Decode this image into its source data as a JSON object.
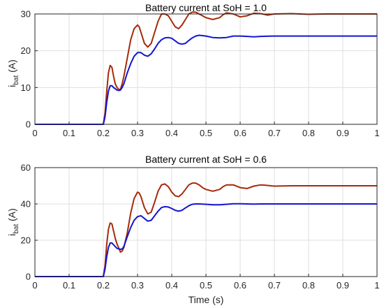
{
  "chart_data": [
    {
      "type": "line",
      "title": "Battery current at SoH = 1.0",
      "ylabel_main": "i",
      "ylabel_sub": "bat",
      "ylabel_unit": " (A)",
      "xlabel": "",
      "xlim": [
        0,
        1
      ],
      "ylim": [
        0,
        30
      ],
      "xticks": [
        "0",
        "0.1",
        "0.2",
        "0.3",
        "0.4",
        "0.5",
        "0.6",
        "0.7",
        "0.8",
        "0.9",
        "1"
      ],
      "yticks": [
        "0",
        "10",
        "20",
        "30"
      ],
      "grid": true,
      "series": [
        {
          "color": "#a52a0a",
          "x": [
            0,
            0.2,
            0.205,
            0.21,
            0.215,
            0.22,
            0.225,
            0.23,
            0.235,
            0.24,
            0.245,
            0.25,
            0.255,
            0.26,
            0.27,
            0.28,
            0.29,
            0.3,
            0.305,
            0.31,
            0.32,
            0.33,
            0.34,
            0.35,
            0.36,
            0.37,
            0.38,
            0.39,
            0.4,
            0.41,
            0.42,
            0.43,
            0.44,
            0.45,
            0.46,
            0.47,
            0.48,
            0.49,
            0.5,
            0.52,
            0.54,
            0.55,
            0.56,
            0.58,
            0.6,
            0.62,
            0.64,
            0.66,
            0.68,
            0.7,
            0.75,
            0.8,
            0.85,
            0.9,
            0.95,
            1.0
          ],
          "y": [
            0,
            0,
            3,
            9,
            14,
            16,
            15.5,
            13,
            11,
            10,
            9.5,
            9.5,
            11,
            13,
            18,
            23,
            26,
            27,
            26.5,
            25,
            22,
            21,
            22,
            25,
            28,
            30,
            30,
            29.5,
            28,
            26.5,
            26,
            27,
            28.5,
            30,
            30.5,
            30.5,
            30,
            29.5,
            29,
            28.5,
            29,
            29.8,
            30.3,
            30,
            29.2,
            29.5,
            30.2,
            30.1,
            29.7,
            30,
            30.1,
            29.9,
            30,
            30,
            30,
            30
          ]
        },
        {
          "color": "#1414d2",
          "x": [
            0,
            0.2,
            0.205,
            0.21,
            0.215,
            0.22,
            0.225,
            0.23,
            0.24,
            0.245,
            0.25,
            0.255,
            0.26,
            0.27,
            0.28,
            0.29,
            0.3,
            0.31,
            0.32,
            0.33,
            0.34,
            0.35,
            0.36,
            0.37,
            0.38,
            0.39,
            0.4,
            0.42,
            0.43,
            0.44,
            0.45,
            0.46,
            0.47,
            0.48,
            0.5,
            0.52,
            0.54,
            0.56,
            0.58,
            0.6,
            0.62,
            0.64,
            0.66,
            0.7,
            0.75,
            0.8,
            0.85,
            0.9,
            0.95,
            1.0
          ],
          "y": [
            0,
            0,
            2,
            6,
            9,
            10.5,
            10.5,
            10,
            9.3,
            9.2,
            9.3,
            10,
            11,
            14,
            16.5,
            18.5,
            19.5,
            19.5,
            18.8,
            18.5,
            19.2,
            20.5,
            22,
            23,
            23.5,
            23.6,
            23.4,
            22,
            21.8,
            22,
            22.8,
            23.5,
            24,
            24.2,
            24,
            23.6,
            23.5,
            23.6,
            24,
            24,
            23.9,
            23.8,
            23.9,
            24,
            24,
            24,
            24,
            24,
            24,
            24
          ]
        }
      ]
    },
    {
      "type": "line",
      "title": "Battery current at SoH = 0.6",
      "ylabel_main": "i",
      "ylabel_sub": "bat",
      "ylabel_unit": " (A)",
      "xlabel": "Time (s)",
      "xlim": [
        0,
        1
      ],
      "ylim": [
        0,
        60
      ],
      "xticks": [
        "0",
        "0.1",
        "0.2",
        "0.3",
        "0.4",
        "0.5",
        "0.6",
        "0.7",
        "0.8",
        "0.9",
        "1"
      ],
      "yticks": [
        "0",
        "20",
        "40",
        "60"
      ],
      "grid": true,
      "series": [
        {
          "color": "#a52a0a",
          "x": [
            0,
            0.2,
            0.205,
            0.21,
            0.215,
            0.22,
            0.225,
            0.23,
            0.235,
            0.24,
            0.25,
            0.255,
            0.26,
            0.27,
            0.28,
            0.29,
            0.3,
            0.305,
            0.31,
            0.32,
            0.33,
            0.34,
            0.35,
            0.36,
            0.37,
            0.38,
            0.39,
            0.4,
            0.41,
            0.42,
            0.43,
            0.44,
            0.45,
            0.46,
            0.47,
            0.48,
            0.49,
            0.5,
            0.52,
            0.54,
            0.55,
            0.56,
            0.58,
            0.6,
            0.62,
            0.64,
            0.66,
            0.68,
            0.7,
            0.75,
            0.8,
            0.85,
            0.9,
            0.95,
            1.0
          ],
          "y": [
            0,
            0,
            6,
            18,
            26,
            29.5,
            29,
            25,
            21,
            18,
            13.5,
            14,
            16,
            24,
            35,
            43,
            46.5,
            46,
            44,
            38,
            34.5,
            35.5,
            41,
            47,
            50.5,
            51,
            49.5,
            46.5,
            44.5,
            44,
            45.5,
            48,
            50.5,
            51.5,
            51.5,
            50.5,
            49,
            48,
            47,
            48,
            49.5,
            50.5,
            50.5,
            49,
            48.5,
            49.8,
            50.5,
            50.2,
            49.8,
            50,
            50,
            50,
            50,
            50,
            50
          ]
        },
        {
          "color": "#1414d2",
          "x": [
            0,
            0.2,
            0.205,
            0.21,
            0.215,
            0.22,
            0.225,
            0.23,
            0.24,
            0.25,
            0.255,
            0.26,
            0.27,
            0.28,
            0.29,
            0.3,
            0.31,
            0.32,
            0.33,
            0.34,
            0.35,
            0.36,
            0.37,
            0.38,
            0.39,
            0.4,
            0.41,
            0.42,
            0.43,
            0.44,
            0.45,
            0.46,
            0.47,
            0.48,
            0.5,
            0.52,
            0.54,
            0.56,
            0.58,
            0.6,
            0.62,
            0.64,
            0.66,
            0.7,
            0.75,
            0.8,
            0.85,
            0.9,
            0.95,
            1.0
          ],
          "y": [
            0,
            0,
            4,
            11,
            16,
            18.5,
            18.5,
            17.5,
            15.5,
            15,
            15.2,
            16.5,
            22,
            27,
            31,
            33,
            33.5,
            32,
            30.5,
            31,
            33.5,
            36,
            38,
            38.5,
            38.3,
            37.5,
            36.5,
            36,
            36.5,
            37.8,
            39,
            39.8,
            40,
            40,
            39.8,
            39.5,
            39.5,
            39.8,
            40.1,
            40.1,
            40,
            39.9,
            40,
            40,
            40,
            40,
            40,
            40,
            40,
            40
          ]
        }
      ]
    }
  ]
}
